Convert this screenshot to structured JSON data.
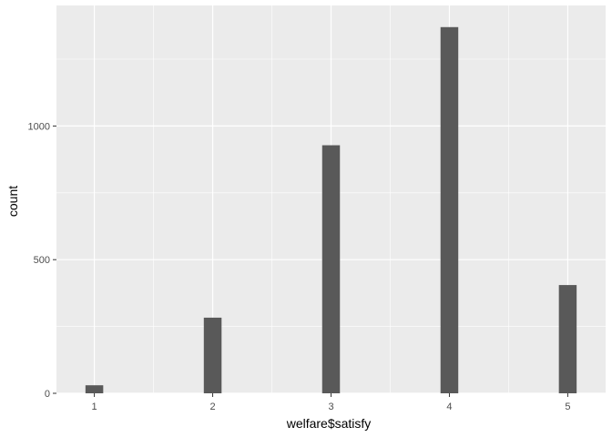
{
  "chart_data": {
    "type": "bar",
    "xlabel": "welfare$satisfy",
    "ylabel": "count",
    "x": [
      1,
      2,
      3,
      4,
      5
    ],
    "values": [
      30,
      283,
      928,
      1370,
      405
    ],
    "xlim": [
      0.68,
      5.32
    ],
    "ylim": [
      0,
      1451
    ],
    "x_ticks": [
      1,
      2,
      3,
      4,
      5
    ],
    "x_tick_labels": [
      "1",
      "2",
      "3",
      "4",
      "5"
    ],
    "y_ticks": [
      0,
      500,
      1000
    ],
    "y_tick_labels": [
      "0",
      "500",
      "1000"
    ],
    "grid": true,
    "colors": {
      "panel_background": "#ebebeb",
      "grid_line": "#ffffff",
      "bar_fill": "#595959",
      "tick_mark": "#333333"
    }
  }
}
